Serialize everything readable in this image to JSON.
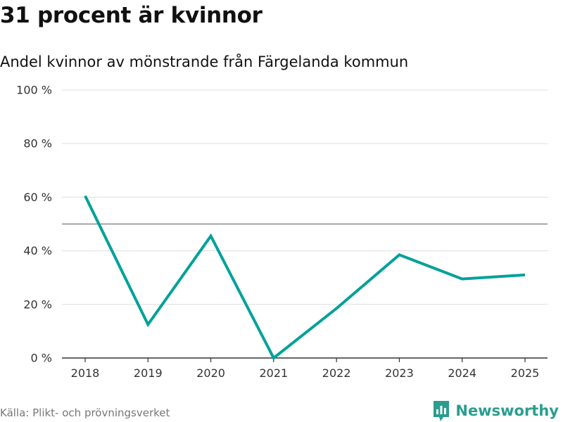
{
  "title": "31 procent är kvinnor",
  "subtitle": "Andel kvinnor av mönstrande från Färgelanda kommun",
  "source": "Källa: Plikt- och prövningsverket",
  "brand": {
    "name": "Newsworthy",
    "icon": "newsworthy-logo-icon",
    "color": "#2a9d8f"
  },
  "chart_data": {
    "type": "line",
    "title": "31 procent är kvinnor",
    "subtitle": "Andel kvinnor av mönstrande från Färgelanda kommun",
    "xlabel": "",
    "ylabel": "",
    "x": [
      "2018",
      "2019",
      "2020",
      "2021",
      "2022",
      "2023",
      "2024",
      "2025"
    ],
    "series": [
      {
        "color": "#00a19a",
        "values": [
          60.5,
          12.5,
          45.5,
          0,
          18.5,
          38.5,
          29.5,
          31
        ]
      }
    ],
    "ylim": [
      0,
      100
    ],
    "yticks": [
      0,
      20,
      40,
      60,
      80,
      100
    ],
    "ytick_labels": [
      "0 %",
      "20 %",
      "40 %",
      "60 %",
      "80 %",
      "100 %"
    ],
    "reference_line": 50,
    "grid": true,
    "legend": "none"
  }
}
